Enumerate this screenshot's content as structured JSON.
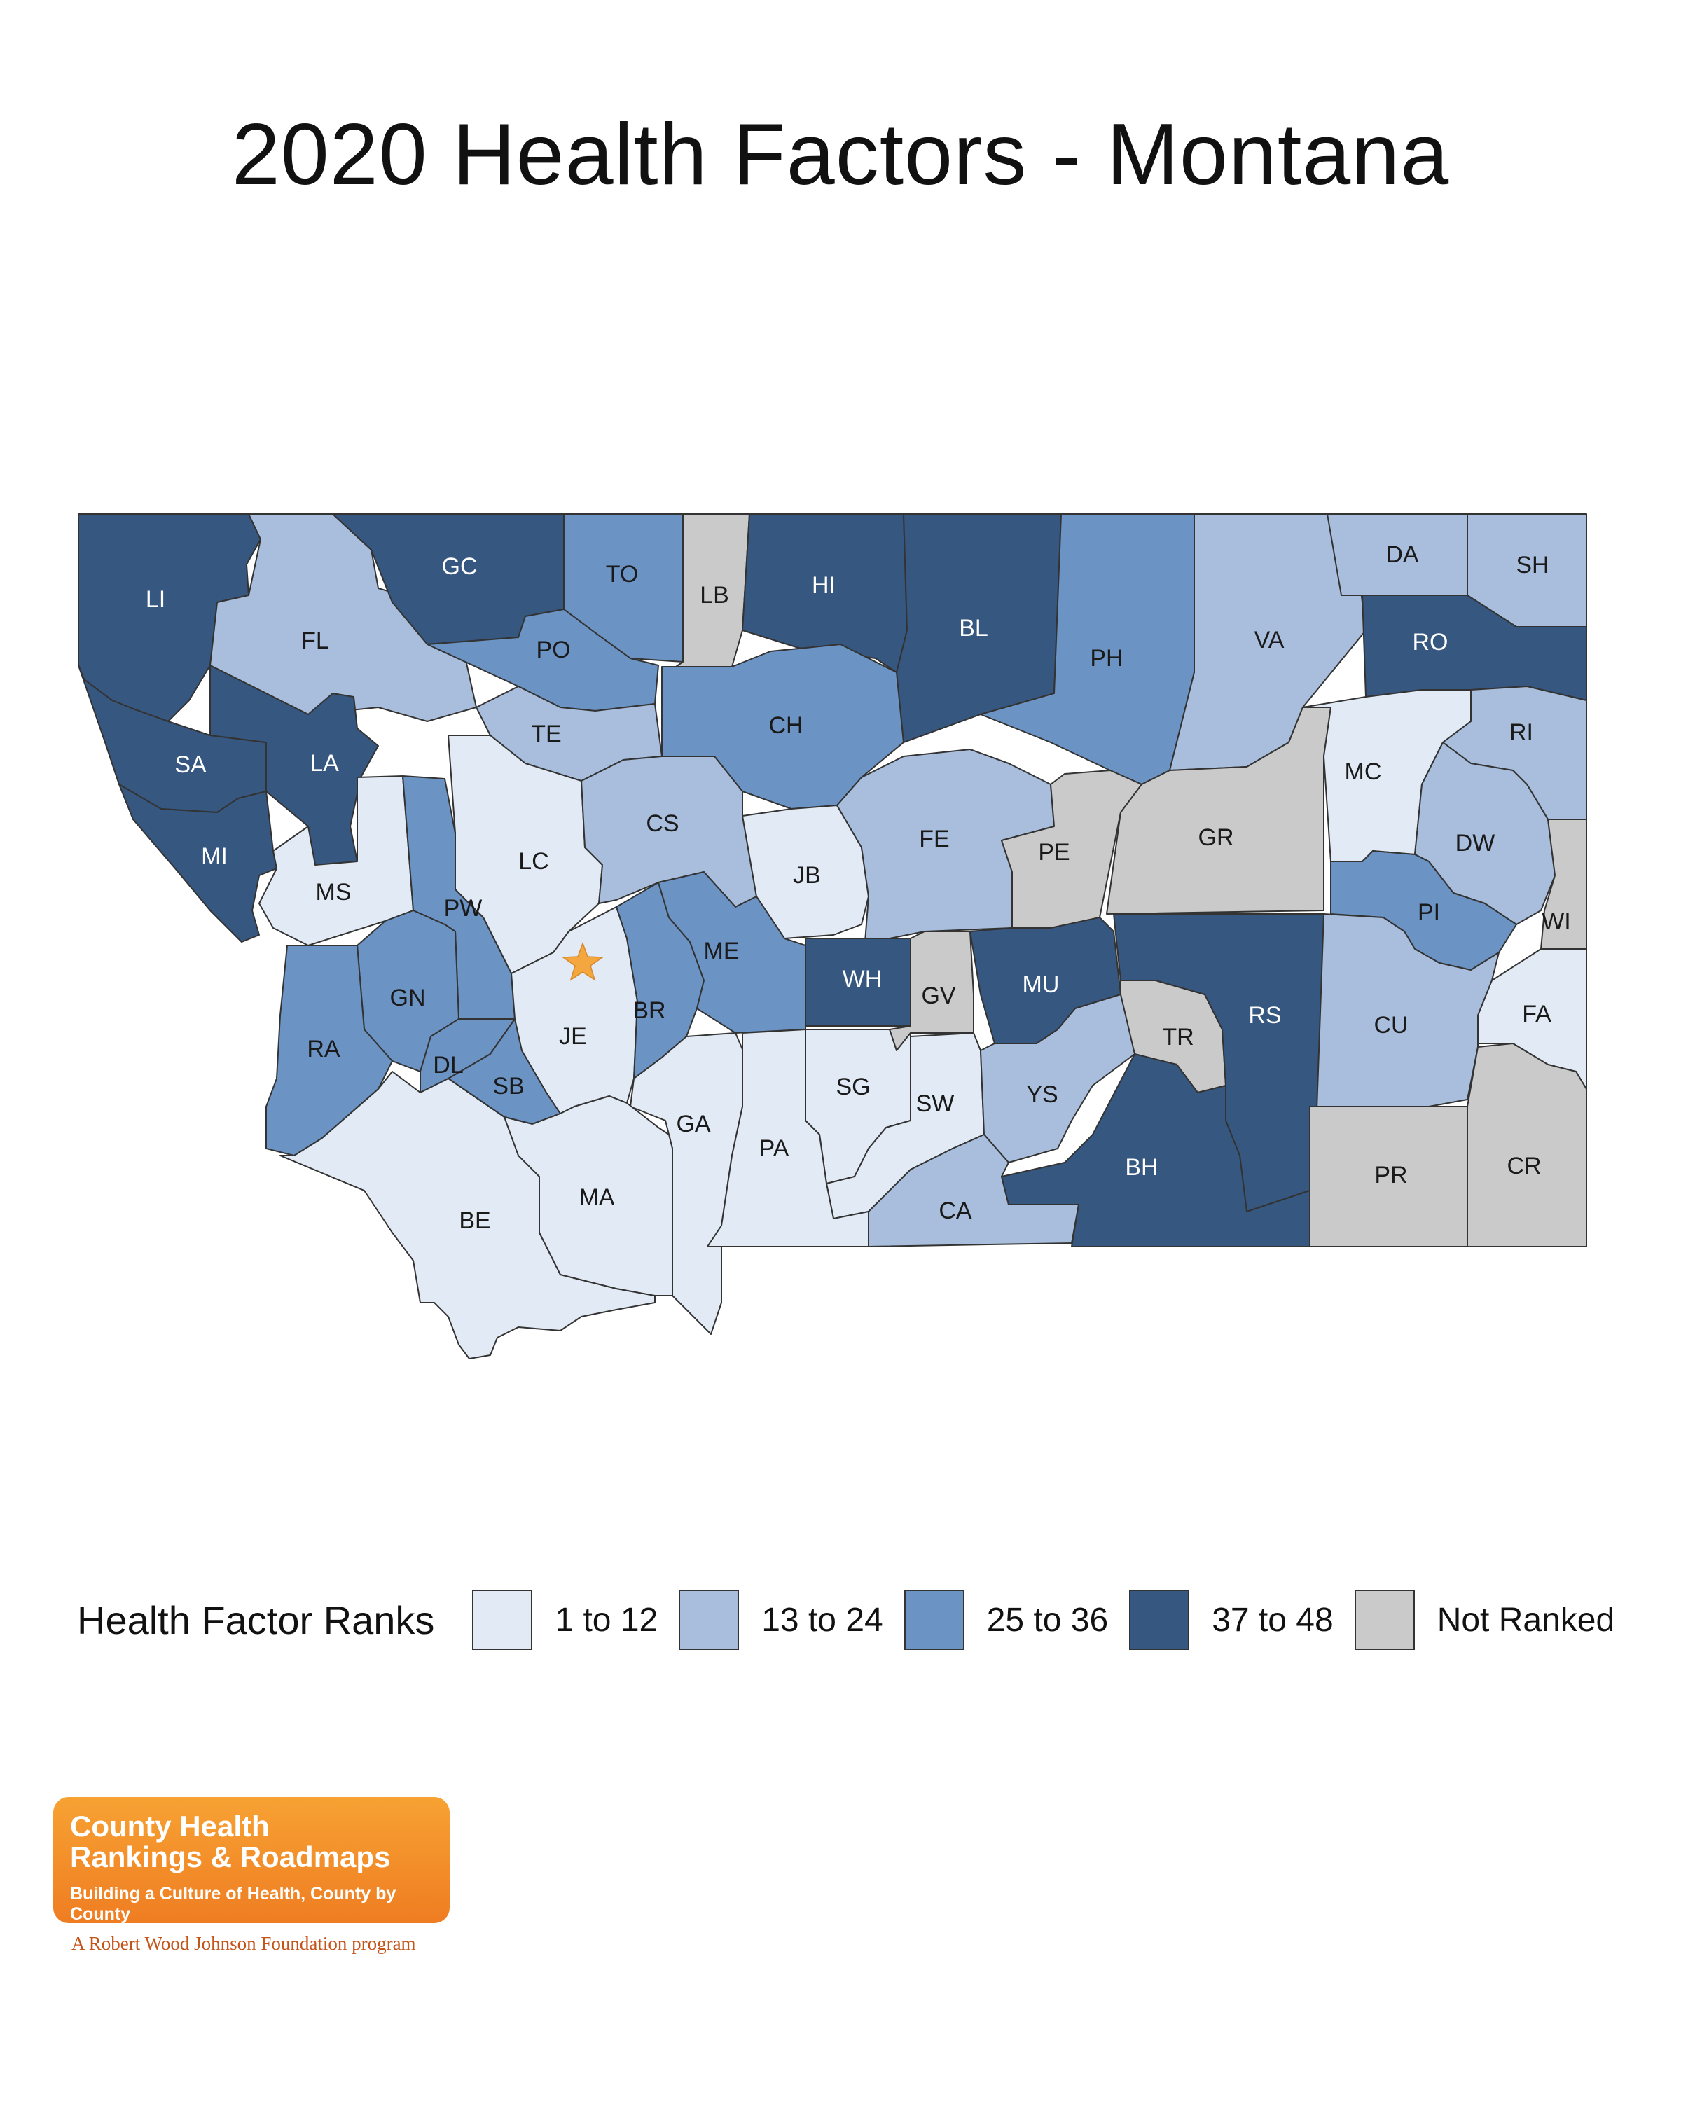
{
  "title": "2020 Health Factors - Montana",
  "state_capital_marker": "star",
  "colors": {
    "rank_1_12": "#e2ebf5",
    "rank_13_24": "#a8bedc",
    "rank_25_36": "#6b93c4",
    "rank_37_48": "#36577f",
    "not_ranked": "#cacaca",
    "capital_star": "#f3a73e",
    "border": "#333333"
  },
  "legend": {
    "title": "Health Factor Ranks",
    "items": [
      {
        "label": "1 to 12",
        "category": "rank_1_12"
      },
      {
        "label": "13 to 24",
        "category": "rank_13_24"
      },
      {
        "label": "25 to 36",
        "category": "rank_25_36"
      },
      {
        "label": "37 to 48",
        "category": "rank_37_48"
      },
      {
        "label": "Not Ranked",
        "category": "not_ranked"
      }
    ]
  },
  "counties": [
    {
      "abbr": "LI",
      "category": "rank_37_48"
    },
    {
      "abbr": "FL",
      "category": "rank_13_24"
    },
    {
      "abbr": "GC",
      "category": "rank_37_48"
    },
    {
      "abbr": "TO",
      "category": "rank_25_36"
    },
    {
      "abbr": "LB",
      "category": "not_ranked"
    },
    {
      "abbr": "HI",
      "category": "rank_37_48"
    },
    {
      "abbr": "BL",
      "category": "rank_37_48"
    },
    {
      "abbr": "PH",
      "category": "rank_25_36"
    },
    {
      "abbr": "VA",
      "category": "rank_13_24"
    },
    {
      "abbr": "DA",
      "category": "rank_13_24"
    },
    {
      "abbr": "SH",
      "category": "rank_13_24"
    },
    {
      "abbr": "RO",
      "category": "rank_37_48"
    },
    {
      "abbr": "PO",
      "category": "rank_25_36"
    },
    {
      "abbr": "TE",
      "category": "rank_13_24"
    },
    {
      "abbr": "CH",
      "category": "rank_25_36"
    },
    {
      "abbr": "SA",
      "category": "rank_37_48"
    },
    {
      "abbr": "LA",
      "category": "rank_37_48"
    },
    {
      "abbr": "MI",
      "category": "rank_37_48"
    },
    {
      "abbr": "MS",
      "category": "rank_1_12"
    },
    {
      "abbr": "LC",
      "category": "rank_1_12"
    },
    {
      "abbr": "CS",
      "category": "rank_13_24"
    },
    {
      "abbr": "JB",
      "category": "rank_1_12"
    },
    {
      "abbr": "FE",
      "category": "rank_13_24"
    },
    {
      "abbr": "PE",
      "category": "not_ranked"
    },
    {
      "abbr": "GR",
      "category": "not_ranked"
    },
    {
      "abbr": "MC",
      "category": "rank_1_12"
    },
    {
      "abbr": "RI",
      "category": "rank_13_24"
    },
    {
      "abbr": "DW",
      "category": "rank_13_24"
    },
    {
      "abbr": "WI",
      "category": "not_ranked"
    },
    {
      "abbr": "PI",
      "category": "rank_25_36"
    },
    {
      "abbr": "PW",
      "category": "rank_25_36"
    },
    {
      "abbr": "GN",
      "category": "rank_25_36"
    },
    {
      "abbr": "RA",
      "category": "rank_25_36"
    },
    {
      "abbr": "DL",
      "category": "rank_25_36"
    },
    {
      "abbr": "SB",
      "category": "rank_25_36"
    },
    {
      "abbr": "JE",
      "category": "rank_1_12"
    },
    {
      "abbr": "BR",
      "category": "rank_25_36"
    },
    {
      "abbr": "ME",
      "category": "rank_25_36"
    },
    {
      "abbr": "WH",
      "category": "rank_37_48"
    },
    {
      "abbr": "GV",
      "category": "not_ranked"
    },
    {
      "abbr": "MU",
      "category": "rank_37_48"
    },
    {
      "abbr": "TR",
      "category": "not_ranked"
    },
    {
      "abbr": "RS",
      "category": "rank_37_48"
    },
    {
      "abbr": "CU",
      "category": "rank_13_24"
    },
    {
      "abbr": "FA",
      "category": "rank_1_12"
    },
    {
      "abbr": "GA",
      "category": "rank_1_12"
    },
    {
      "abbr": "SG",
      "category": "rank_1_12"
    },
    {
      "abbr": "SW",
      "category": "rank_1_12"
    },
    {
      "abbr": "YS",
      "category": "rank_13_24"
    },
    {
      "abbr": "PA",
      "category": "rank_1_12"
    },
    {
      "abbr": "BE",
      "category": "rank_1_12"
    },
    {
      "abbr": "MA",
      "category": "rank_1_12"
    },
    {
      "abbr": "CA",
      "category": "rank_13_24"
    },
    {
      "abbr": "BH",
      "category": "rank_37_48"
    },
    {
      "abbr": "PR",
      "category": "not_ranked"
    },
    {
      "abbr": "CR",
      "category": "not_ranked"
    }
  ],
  "branding": {
    "line1": "County Health",
    "line2": "Rankings & Roadmaps",
    "tagline": "Building a Culture of Health, County by County",
    "footer": "A Robert Wood Johnson Foundation program"
  }
}
